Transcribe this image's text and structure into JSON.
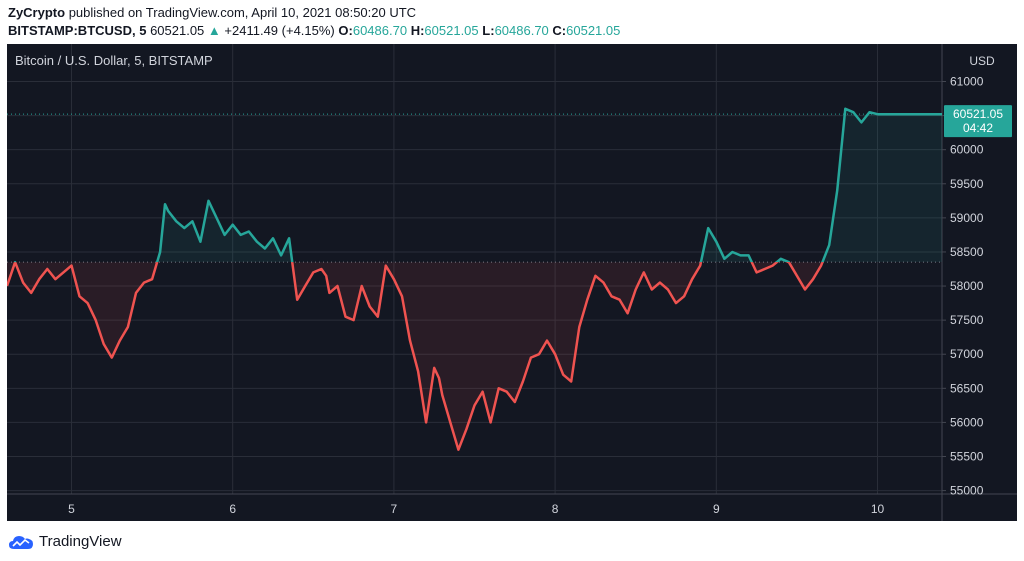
{
  "header": {
    "publisher": "ZyCrypto",
    "published_text": "published on TradingView.com, April 10, 2021 08:50:20 UTC",
    "symbol": "BITSTAMP:BTCUSD, 5",
    "last_price": "60521.05",
    "change_arrow": "▲",
    "change": "+2411.49 (+4.15%)",
    "o_label": "O:",
    "o_value": "60486.70",
    "h_label": "H:",
    "h_value": "60521.05",
    "l_label": "L:",
    "l_value": "60486.70",
    "c_label": "C:",
    "c_value": "60521.05"
  },
  "footer": {
    "brand": "TradingView"
  },
  "colors": {
    "up": "#26a69a",
    "down": "#ef5350",
    "background": "#131722",
    "grid": "#2a2e39",
    "axis_text": "#d1d4dc"
  },
  "chart_data": {
    "type": "area",
    "title": "Bitcoin / U.S. Dollar, 5, BITSTAMP",
    "currency_label": "USD",
    "baseline": 58350,
    "ylim": [
      54950,
      61550
    ],
    "y_ticks": [
      "55000",
      "55500",
      "56000",
      "56500",
      "57000",
      "57500",
      "58000",
      "58500",
      "59000",
      "59500",
      "60000",
      "60500",
      "61000"
    ],
    "x_ticks": [
      {
        "label": "5",
        "x": 4.0
      },
      {
        "label": "6",
        "x": 5.0
      },
      {
        "label": "7",
        "x": 6.0
      },
      {
        "label": "8",
        "x": 7.0
      },
      {
        "label": "9",
        "x": 8.0
      },
      {
        "label": "10",
        "x": 9.0
      }
    ],
    "xlim": [
      3.6,
      9.4
    ],
    "last_value_label": "60521.05",
    "countdown": "04:42",
    "series": [
      {
        "x": [
          3.6,
          3.65,
          3.7,
          3.75,
          3.8,
          3.85,
          3.9,
          3.95,
          4.0,
          4.05,
          4.1,
          4.15,
          4.2,
          4.25,
          4.3,
          4.35,
          4.4,
          4.45,
          4.5,
          4.55,
          4.58,
          4.6,
          4.65,
          4.7,
          4.75,
          4.8,
          4.85,
          4.9,
          4.95,
          5.0,
          5.05,
          5.1,
          5.15,
          5.2,
          5.25,
          5.3,
          5.35,
          5.4,
          5.45,
          5.5,
          5.55,
          5.58,
          5.6,
          5.65,
          5.7,
          5.75,
          5.8,
          5.85,
          5.9,
          5.95,
          6.0,
          6.05,
          6.1,
          6.15,
          6.2,
          6.25,
          6.28,
          6.3,
          6.35,
          6.4,
          6.45,
          6.5,
          6.55,
          6.6,
          6.65,
          6.7,
          6.75,
          6.8,
          6.85,
          6.9,
          6.95,
          7.0,
          7.05,
          7.1,
          7.15,
          7.2,
          7.25,
          7.3,
          7.35,
          7.4,
          7.45,
          7.5,
          7.55,
          7.6,
          7.65,
          7.7,
          7.75,
          7.8,
          7.85,
          7.9,
          7.95,
          8.0,
          8.05,
          8.1,
          8.15,
          8.2,
          8.25,
          8.3,
          8.35,
          8.4,
          8.45,
          8.5,
          8.55,
          8.6,
          8.65,
          8.7,
          8.75,
          8.8,
          8.85,
          8.9,
          8.95,
          9.0,
          9.02,
          9.05,
          9.1,
          9.15,
          9.2,
          9.25,
          9.3,
          9.35,
          9.4
        ],
        "y": [
          58000,
          58350,
          58050,
          57900,
          58100,
          58250,
          58100,
          58200,
          58300,
          57850,
          57750,
          57500,
          57150,
          56950,
          57200,
          57400,
          57900,
          58050,
          58100,
          58500,
          59200,
          59100,
          58950,
          58850,
          58950,
          58650,
          59250,
          59000,
          58750,
          58900,
          58750,
          58800,
          58650,
          58550,
          58700,
          58450,
          58700,
          57800,
          58000,
          58200,
          58250,
          58150,
          57900,
          58000,
          57550,
          57500,
          58000,
          57700,
          57550,
          58300,
          58100,
          57850,
          57200,
          56750,
          56000,
          56800,
          56650,
          56400,
          56000,
          55600,
          55900,
          56250,
          56450,
          56000,
          56500,
          56450,
          56300,
          56600,
          56950,
          57000,
          57200,
          57000,
          56700,
          56600,
          57400,
          57800,
          58150,
          58050,
          57850,
          57800,
          57600,
          57950,
          58200,
          57950,
          58050,
          57950,
          57750,
          57850,
          58100,
          58300,
          58850,
          58650,
          58400,
          58500,
          58450,
          58450,
          58200,
          58250,
          58300,
          58400,
          58350,
          58150,
          57950,
          58100,
          58300,
          58600,
          59400,
          60600,
          60550,
          60400,
          60550,
          60521,
          60521,
          60521,
          60521,
          60521,
          60521,
          60521,
          60521,
          60521,
          60521
        ]
      }
    ]
  }
}
